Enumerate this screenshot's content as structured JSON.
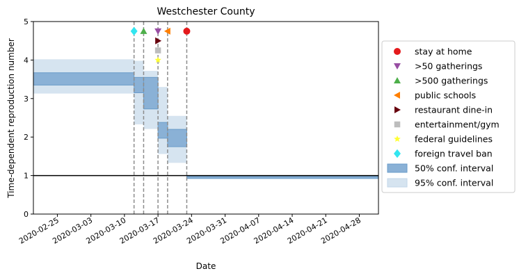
{
  "chart_data": {
    "type": "step",
    "title": "Westchester County",
    "xlabel": "Date",
    "ylabel": "Time-dependent reproduction number",
    "ylim": [
      0,
      5
    ],
    "xlim": [
      "2020-02-20",
      "2020-05-02"
    ],
    "yticks": [
      0,
      1,
      2,
      3,
      4,
      5
    ],
    "xticks": [
      "2020-02-25",
      "2020-03-03",
      "2020-03-10",
      "2020-03-17",
      "2020-03-24",
      "2020-03-31",
      "2020-04-07",
      "2020-04-14",
      "2020-04-21",
      "2020-04-28"
    ],
    "reference_line": 1,
    "legend_position": "right, outside plot",
    "segments": [
      {
        "start": "2020-02-20",
        "end": "2020-03-12",
        "ci50": [
          3.35,
          3.67
        ],
        "ci95": [
          3.13,
          4.02
        ]
      },
      {
        "start": "2020-03-12",
        "end": "2020-03-14",
        "ci50": [
          3.15,
          3.55
        ],
        "ci95": [
          2.33,
          3.98
        ]
      },
      {
        "start": "2020-03-14",
        "end": "2020-03-17",
        "ci50": [
          2.73,
          3.55
        ],
        "ci95": [
          2.21,
          3.72
        ]
      },
      {
        "start": "2020-03-17",
        "end": "2020-03-19",
        "ci50": [
          1.97,
          2.38
        ],
        "ci95": [
          1.56,
          3.3
        ]
      },
      {
        "start": "2020-03-19",
        "end": "2020-03-23",
        "ci50": [
          1.75,
          2.2
        ],
        "ci95": [
          1.33,
          2.55
        ]
      },
      {
        "start": "2020-03-23",
        "end": "2020-05-02",
        "ci50": [
          0.93,
          0.98
        ],
        "ci95": [
          0.9,
          1.0
        ]
      }
    ],
    "interventions": [
      {
        "label": "stay at home",
        "date": "2020-03-23",
        "y": 4.75,
        "marker": "circle",
        "color": "#e41a1c"
      },
      {
        "label": ">50 gatherings",
        "date": "2020-03-17",
        "y": 4.75,
        "marker": "triangle-down",
        "color": "#984ea3"
      },
      {
        "label": ">500 gatherings",
        "date": "2020-03-14",
        "y": 4.75,
        "marker": "triangle-up",
        "color": "#4daf4a"
      },
      {
        "label": "public schools",
        "date": "2020-03-19",
        "y": 4.75,
        "marker": "triangle-left",
        "color": "#ff7f00"
      },
      {
        "label": "restaurant dine-in",
        "date": "2020-03-17",
        "y": 4.5,
        "marker": "triangle-right",
        "color": "#67000d"
      },
      {
        "label": "entertainment/gym",
        "date": "2020-03-17",
        "y": 4.25,
        "marker": "square",
        "color": "#bdbdbd"
      },
      {
        "label": "federal guidelines",
        "date": "2020-03-17",
        "y": 4.0,
        "marker": "star",
        "color": "#ffff33"
      },
      {
        "label": "foreign travel ban",
        "date": "2020-03-12",
        "y": 4.75,
        "marker": "diamond",
        "color": "#33e6f0"
      }
    ],
    "intervention_dates": [
      "2020-03-12",
      "2020-03-14",
      "2020-03-17",
      "2020-03-19",
      "2020-03-23"
    ],
    "legend": [
      {
        "label": "stay at home",
        "marker": "circle",
        "color": "#e41a1c"
      },
      {
        "label": ">50 gatherings",
        "marker": "triangle-down",
        "color": "#984ea3"
      },
      {
        "label": ">500 gatherings",
        "marker": "triangle-up",
        "color": "#4daf4a"
      },
      {
        "label": "public schools",
        "marker": "triangle-left",
        "color": "#ff7f00"
      },
      {
        "label": "restaurant dine-in",
        "marker": "triangle-right",
        "color": "#67000d"
      },
      {
        "label": "entertainment/gym",
        "marker": "square",
        "color": "#bdbdbd"
      },
      {
        "label": "federal guidelines",
        "marker": "star",
        "color": "#ffff33"
      },
      {
        "label": "foreign travel ban",
        "marker": "diamond",
        "color": "#33e6f0"
      },
      {
        "label": "50% conf. interval",
        "marker": "patch",
        "color": "#8ab1d6"
      },
      {
        "label": "95% conf. interval",
        "marker": "patch",
        "color": "#d6e4f0"
      }
    ],
    "colors": {
      "ci50_fill": "#8ab1d6",
      "ci50_edge": "#6a9cc9",
      "ci95_fill": "#d6e4f0",
      "reference_line": "#000000",
      "intervention_line": "#8c8c8c"
    }
  }
}
